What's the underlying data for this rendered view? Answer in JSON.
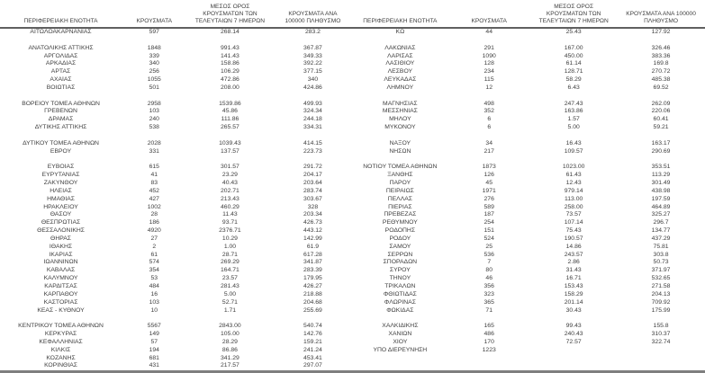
{
  "document": {
    "description": "Regional units COVID-19 cases table",
    "colors": {
      "background": "#ffffff",
      "text": "#3e3e3e",
      "header_rule": "#606060",
      "bottom_rule": "#7f7f7f"
    }
  },
  "tables": [
    {
      "columns": [
        "ΠΕΡΙΦΕΡΕΙΑΚΗ ΕΝΟΤΗΤΑ",
        "ΚΡΟΥΣΜΑΤΑ",
        "ΜΕΣΟΣ ΟΡΟΣ ΚΡΟΥΣΜΑΤΩΝ ΤΩΝ ΤΕΛΕΥΤΑΙΩΝ 7 ΗΜΕΡΩΝ",
        "ΚΡΟΥΣΜΑΤΑ ΑΝΑ 100000 ΠΛΗΘΥΣΜΟ"
      ],
      "rows": [
        [
          "ΑΙΤΩΛΟΑΚΑΡΝΑΝΙΑΣ",
          "597",
          "268.14",
          "283.2"
        ],
        null,
        [
          "ΑΝΑΤΟΛΙΚΗΣ ΑΤΤΙΚΗΣ",
          "1848",
          "991.43",
          "367.87"
        ],
        [
          "ΑΡΓΟΛΙΔΑΣ",
          "339",
          "141.43",
          "349.33"
        ],
        [
          "ΑΡΚΑΔΙΑΣ",
          "340",
          "158.86",
          "392.22"
        ],
        [
          "ΑΡΤΑΣ",
          "256",
          "106.29",
          "377.15"
        ],
        [
          "ΑΧΑΪΑΣ",
          "1055",
          "472.86",
          "340"
        ],
        [
          "ΒΟΙΩΤΙΑΣ",
          "501",
          "208.00",
          "424.86"
        ],
        null,
        [
          "ΒΟΡΕΙΟΥ ΤΟΜΕΑ ΑΘΗΝΩΝ",
          "2958",
          "1539.86",
          "499.93"
        ],
        [
          "ΓΡΕΒΕΝΩΝ",
          "103",
          "45.86",
          "324.34"
        ],
        [
          "ΔΡΑΜΑΣ",
          "240",
          "111.86",
          "244.18"
        ],
        [
          "ΔΥΤΙΚΗΣ ΑΤΤΙΚΗΣ",
          "538",
          "265.57",
          "334.31"
        ],
        null,
        [
          "ΔΥΤΙΚΟΥ ΤΟΜΕΑ ΑΘΗΝΩΝ",
          "2028",
          "1039.43",
          "414.15"
        ],
        [
          "ΕΒΡΟΥ",
          "331",
          "137.57",
          "223.73"
        ],
        null,
        [
          "ΕΥΒΟΙΑΣ",
          "615",
          "301.57",
          "291.72"
        ],
        [
          "ΕΥΡΥΤΑΝΙΑΣ",
          "41",
          "23.29",
          "204.17"
        ],
        [
          "ΖΑΚΥΝΘΟΥ",
          "83",
          "40.43",
          "203.64"
        ],
        [
          "ΗΛΕΙΑΣ",
          "452",
          "202.71",
          "283.74"
        ],
        [
          "ΗΜΑΘΙΑΣ",
          "427",
          "213.43",
          "303.67"
        ],
        [
          "ΗΡΑΚΛΕΙΟΥ",
          "1002",
          "460.29",
          "328"
        ],
        [
          "ΘΑΣΟΥ",
          "28",
          "11.43",
          "203.34"
        ],
        [
          "ΘΕΣΠΡΩΤΙΑΣ",
          "186",
          "93.71",
          "426.73"
        ],
        [
          "ΘΕΣΣΑΛΟΝΙΚΗΣ",
          "4920",
          "2376.71",
          "443.12"
        ],
        [
          "ΘΗΡΑΣ",
          "27",
          "10.29",
          "142.99"
        ],
        [
          "ΙΘΑΚΗΣ",
          "2",
          "1.00",
          "61.9"
        ],
        [
          "ΙΚΑΡΙΑΣ",
          "61",
          "28.71",
          "617.28"
        ],
        [
          "ΙΩΑΝΝΙΝΩΝ",
          "574",
          "269.29",
          "341.87"
        ],
        [
          "ΚΑΒΑΛΑΣ",
          "354",
          "164.71",
          "283.39"
        ],
        [
          "ΚΑΛΥΜΝΟΥ",
          "53",
          "23.57",
          "179.95"
        ],
        [
          "ΚΑΡΔΙΤΣΑΣ",
          "484",
          "281.43",
          "426.27"
        ],
        [
          "ΚΑΡΠΑΘΟΥ",
          "16",
          "5.00",
          "218.88"
        ],
        [
          "ΚΑΣΤΟΡΙΑΣ",
          "103",
          "52.71",
          "204.68"
        ],
        [
          "ΚΕΑΣ - ΚΥΘΝΟΥ",
          "10",
          "1.71",
          "255.69"
        ],
        null,
        [
          "ΚΕΝΤΡΙΚΟΥ ΤΟΜΕΑ ΑΘΗΝΩΝ",
          "5567",
          "2843.00",
          "540.74"
        ],
        [
          "ΚΕΡΚΥΡΑΣ",
          "149",
          "105.00",
          "142.76"
        ],
        [
          "ΚΕΦΑΛΛΗΝΙΑΣ",
          "57",
          "28.29",
          "159.21"
        ],
        [
          "ΚΙΛΚΙΣ",
          "194",
          "86.86",
          "241.24"
        ],
        [
          "ΚΟΖΑΝΗΣ",
          "681",
          "341.29",
          "453.41"
        ],
        [
          "ΚΟΡΙΝΘΙΑΣ",
          "431",
          "217.57",
          "297.07"
        ]
      ]
    },
    {
      "columns": [
        "ΠΕΡΙΦΕΡΕΙΑΚΗ ΕΝΟΤΗΤΑ",
        "ΚΡΟΥΣΜΑΤΑ",
        "ΜΕΣΟΣ ΟΡΟΣ ΚΡΟΥΣΜΑΤΩΝ ΤΩΝ ΤΕΛΕΥΤΑΙΩΝ 7 ΗΜΕΡΩΝ",
        "ΚΡΟΥΣΜΑΤΑ ΑΝΑ 100000 ΠΛΗΘΥΣΜΟ"
      ],
      "rows": [
        [
          "ΚΩ",
          "44",
          "25.43",
          "127.92"
        ],
        null,
        [
          "ΛΑΚΩΝΙΑΣ",
          "291",
          "167.00",
          "326.46"
        ],
        [
          "ΛΑΡΙΣΑΣ",
          "1090",
          "450.00",
          "383.36"
        ],
        [
          "ΛΑΣΙΘΙΟΥ",
          "128",
          "61.14",
          "169.8"
        ],
        [
          "ΛΕΣΒΟΥ",
          "234",
          "128.71",
          "270.72"
        ],
        [
          "ΛΕΥΚΑΔΑΣ",
          "115",
          "58.29",
          "485.38"
        ],
        [
          "ΛΗΜΝΟΥ",
          "12",
          "6.43",
          "69.52"
        ],
        null,
        [
          "ΜΑΓΝΗΣΙΑΣ",
          "498",
          "247.43",
          "262.09"
        ],
        [
          "ΜΕΣΣΗΝΙΑΣ",
          "352",
          "163.86",
          "220.06"
        ],
        [
          "ΜΗΛΟΥ",
          "6",
          "1.57",
          "60.41"
        ],
        [
          "ΜΥΚΟΝΟΥ",
          "6",
          "5.00",
          "59.21"
        ],
        null,
        [
          "ΝΑΞΟΥ",
          "34",
          "16.43",
          "163.17"
        ],
        [
          "ΝΗΣΩΝ",
          "217",
          "109.57",
          "290.69"
        ],
        null,
        [
          "ΝΟΤΙΟΥ ΤΟΜΕΑ ΑΘΗΝΩΝ",
          "1873",
          "1023.00",
          "353.51"
        ],
        [
          "ΞΑΝΘΗΣ",
          "126",
          "61.43",
          "113.29"
        ],
        [
          "ΠΑΡΟΥ",
          "45",
          "12.43",
          "301.49"
        ],
        [
          "ΠΕΙΡΑΙΩΣ",
          "1971",
          "979.14",
          "438.98"
        ],
        [
          "ΠΕΛΛΑΣ",
          "276",
          "113.00",
          "197.59"
        ],
        [
          "ΠΙΕΡΙΑΣ",
          "589",
          "258.00",
          "464.89"
        ],
        [
          "ΠΡΕΒΕΖΑΣ",
          "187",
          "73.57",
          "325.27"
        ],
        [
          "ΡΕΘΥΜΝΟΥ",
          "254",
          "107.14",
          "296.7"
        ],
        [
          "ΡΟΔΟΠΗΣ",
          "151",
          "75.43",
          "134.77"
        ],
        [
          "ΡΟΔΟΥ",
          "524",
          "190.57",
          "437.29"
        ],
        [
          "ΣΑΜΟΥ",
          "25",
          "14.86",
          "75.81"
        ],
        [
          "ΣΕΡΡΩΝ",
          "536",
          "243.57",
          "303.8"
        ],
        [
          "ΣΠΟΡΑΔΩΝ",
          "7",
          "2.86",
          "50.73"
        ],
        [
          "ΣΥΡΟΥ",
          "80",
          "31.43",
          "371.97"
        ],
        [
          "ΤΗΝΟΥ",
          "46",
          "16.71",
          "532.65"
        ],
        [
          "ΤΡΙΚΑΛΩΝ",
          "356",
          "153.43",
          "271.58"
        ],
        [
          "ΦΘΙΩΤΙΔΑΣ",
          "323",
          "158.29",
          "204.13"
        ],
        [
          "ΦΛΩΡΙΝΑΣ",
          "365",
          "201.14",
          "709.92"
        ],
        [
          "ΦΩΚΙΔΑΣ",
          "71",
          "30.43",
          "175.99"
        ],
        null,
        [
          "ΧΑΛΚΙΔΙΚΗΣ",
          "165",
          "99.43",
          "155.8"
        ],
        [
          "ΧΑΝΙΩΝ",
          "486",
          "240.43",
          "310.37"
        ],
        [
          "ΧΙΟΥ",
          "170",
          "72.57",
          "322.74"
        ],
        [
          "ΥΠΟ ΔΙΕΡΕΥΝΗΣΗ",
          "1223",
          "",
          ""
        ]
      ]
    }
  ]
}
